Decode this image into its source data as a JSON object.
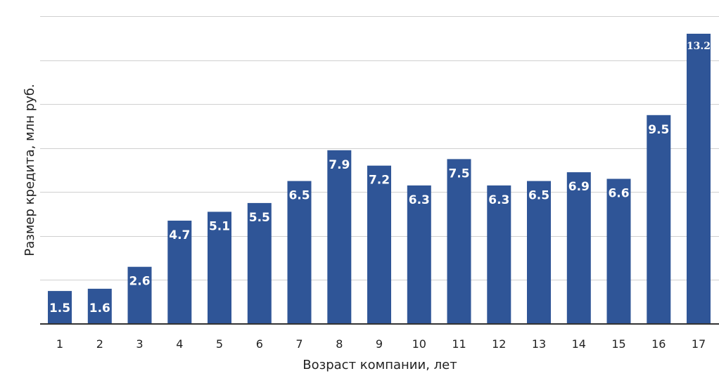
{
  "chart_data": {
    "type": "bar",
    "title": "",
    "xlabel": "Возраст компании, лет",
    "ylabel": "Размер кредита, млн руб.",
    "categories": [
      "1",
      "2",
      "3",
      "4",
      "5",
      "6",
      "7",
      "8",
      "9",
      "10",
      "11",
      "12",
      "13",
      "14",
      "15",
      "16",
      "17"
    ],
    "values": [
      1.5,
      1.6,
      2.6,
      4.7,
      5.1,
      5.5,
      6.5,
      7.9,
      7.2,
      6.3,
      7.5,
      6.3,
      6.5,
      6.9,
      6.6,
      9.5,
      13.2
    ],
    "labels": [
      "1.5",
      "1.6",
      "2.6",
      "4.7",
      "5.1",
      "5.5",
      "6.5",
      "7.9",
      "7.2",
      "6.3",
      "7.5",
      "6.3",
      "6.5",
      "6.9",
      "6.6",
      "9.5",
      "13.2"
    ],
    "ylim": [
      0,
      14
    ],
    "gridlines": [
      2,
      4,
      6,
      8,
      10,
      12,
      14
    ],
    "grid": true,
    "legend": "none",
    "bar_color": "#2f5597"
  }
}
